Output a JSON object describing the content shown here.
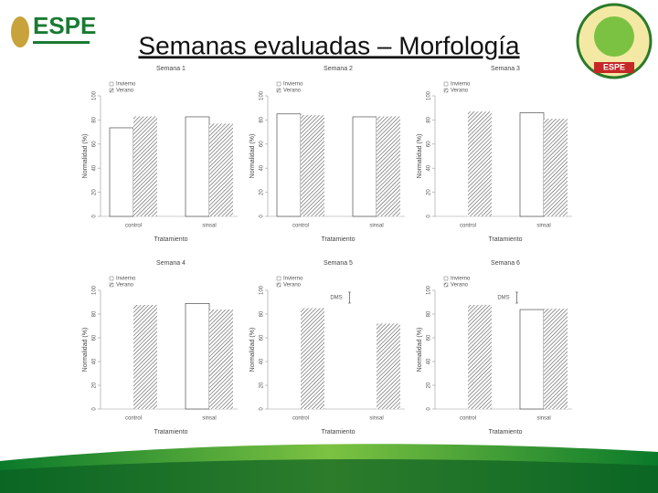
{
  "title": "Semanas evaluadas – Morfología",
  "logo_left": "ESPE",
  "logo_right": "ESPE",
  "chart_data": [
    {
      "type": "bar",
      "title": "Semana 1",
      "ylabel": "Normalidad (%)",
      "xlabel": "Tratamiento",
      "categories": [
        "control",
        "sinsal"
      ],
      "ylim": [
        0,
        100
      ],
      "yticks": [
        0,
        20,
        40,
        60,
        80,
        100
      ],
      "series": [
        {
          "name": "Invierno",
          "color": "#ffffff",
          "values": [
            73.5,
            82.6
          ]
        },
        {
          "name": "Verano",
          "color": "#555555",
          "values": [
            83,
            77
          ]
        }
      ]
    },
    {
      "type": "bar",
      "title": "Semana 2",
      "ylabel": "Normalidad (%)",
      "xlabel": "Tratamiento",
      "categories": [
        "control",
        "sinsal"
      ],
      "ylim": [
        0,
        100
      ],
      "yticks": [
        0,
        20,
        40,
        60,
        80,
        100
      ],
      "series": [
        {
          "name": "Invierno",
          "color": "#ffffff",
          "values": [
            85,
            82.6
          ]
        },
        {
          "name": "Verano",
          "color": "#555555",
          "values": [
            84,
            83
          ]
        }
      ]
    },
    {
      "type": "bar",
      "title": "Semana 3",
      "ylabel": "Normalidad (%)",
      "xlabel": "Tratamiento",
      "categories": [
        "control",
        "sinsal"
      ],
      "ylim": [
        0,
        100
      ],
      "yticks": [
        0,
        20,
        40,
        60,
        80,
        100
      ],
      "series": [
        {
          "name": "Invierno",
          "color": "#ffffff",
          "values": [
            null,
            86
          ]
        },
        {
          "name": "Verano",
          "color": "#555555",
          "values": [
            87,
            81
          ]
        }
      ]
    },
    {
      "type": "bar",
      "title": "Semana 4",
      "ylabel": "Normalidad (%)",
      "xlabel": "Tratamiento",
      "categories": [
        "control",
        "sinsal"
      ],
      "ylim": [
        0,
        100
      ],
      "yticks": [
        0,
        20,
        40,
        60,
        80,
        100
      ],
      "series": [
        {
          "name": "Invierno",
          "color": "#ffffff",
          "values": [
            null,
            89
          ]
        },
        {
          "name": "Verano",
          "color": "#555555",
          "values": [
            87.7,
            83.8
          ]
        }
      ]
    },
    {
      "type": "bar",
      "title": "Semana 5",
      "ylabel": "Normalidad (%)",
      "xlabel": "Tratamiento",
      "categories": [
        "control",
        "sinsal"
      ],
      "ylim": [
        0,
        100
      ],
      "yticks": [
        0,
        20,
        40,
        60,
        80,
        100
      ],
      "annotation": "DMS",
      "series": [
        {
          "name": "Invierno",
          "color": "#ffffff",
          "values": [
            null,
            null
          ]
        },
        {
          "name": "Verano",
          "color": "#555555",
          "values": [
            85,
            72
          ]
        }
      ]
    },
    {
      "type": "bar",
      "title": "Semana 6",
      "ylabel": "Normalidad (%)",
      "xlabel": "Tratamiento",
      "categories": [
        "control",
        "sinsal"
      ],
      "ylim": [
        0,
        100
      ],
      "yticks": [
        0,
        20,
        40,
        60,
        80,
        100
      ],
      "annotation": "DMS",
      "series": [
        {
          "name": "Invierno",
          "color": "#ffffff",
          "values": [
            null,
            83.8
          ]
        },
        {
          "name": "Verano",
          "color": "#555555",
          "values": [
            87.7,
            84.6
          ]
        }
      ]
    }
  ]
}
